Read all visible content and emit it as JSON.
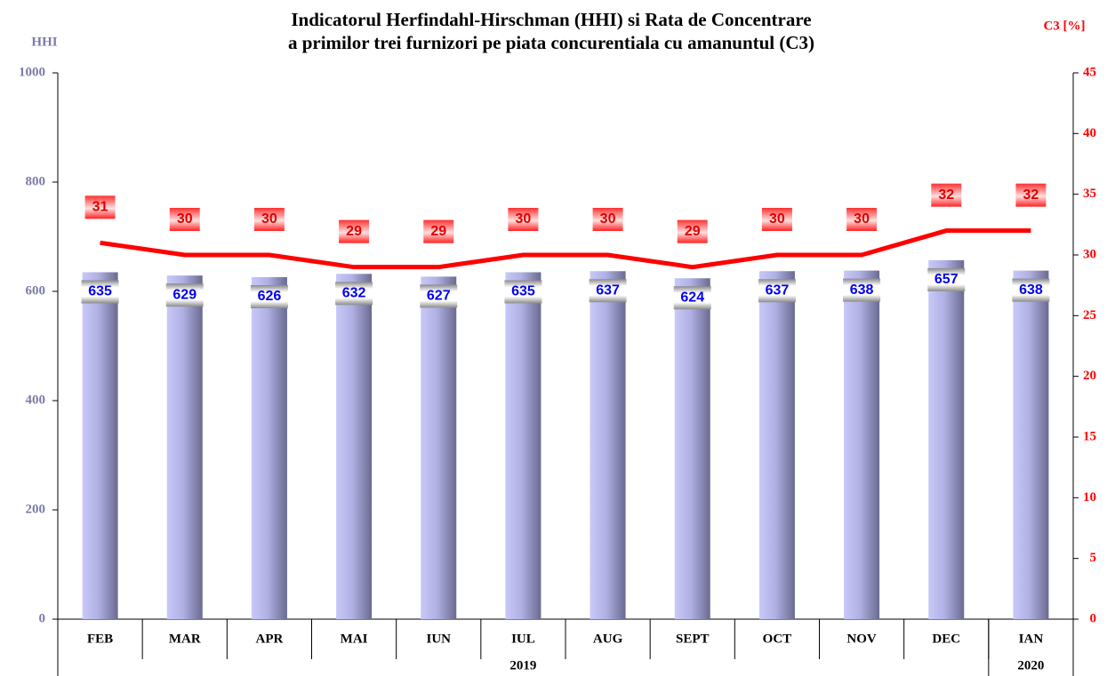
{
  "chart_data": {
    "type": "bar-line",
    "title": [
      "Indicatorul Herfindahl-Hirschman (HHI) si Rata de Concentrare",
      "a primilor trei furnizori pe piata concurentiala cu amanuntul (C3)"
    ],
    "y_axis_label": "HHI",
    "y2_axis_label": "C3 [%]",
    "categories": [
      "FEB",
      "MAR",
      "APR",
      "MAI",
      "IUN",
      "IUL",
      "AUG",
      "SEPT",
      "OCT",
      "NOV",
      "DEC",
      "IAN"
    ],
    "category_groups": [
      {
        "label": "2019",
        "count": 11
      },
      {
        "label": "2020",
        "count": 1
      }
    ],
    "series": [
      {
        "name": "HHI",
        "kind": "bar",
        "color": "#b8b8ee",
        "values": [
          635,
          629,
          626,
          632,
          627,
          635,
          637,
          624,
          637,
          638,
          657,
          638
        ]
      },
      {
        "name": "C3",
        "kind": "line",
        "axis": "y2",
        "color": "#ff0000",
        "values": [
          31,
          30,
          30,
          29,
          29,
          30,
          30,
          29,
          30,
          30,
          32,
          32
        ]
      }
    ],
    "ylim": [
      0,
      1000
    ],
    "yticks": [
      0,
      200,
      400,
      600,
      800,
      1000
    ],
    "y2lim": [
      0,
      45
    ],
    "y2ticks": [
      0,
      5,
      10,
      15,
      20,
      25,
      30,
      35,
      40,
      45
    ]
  }
}
